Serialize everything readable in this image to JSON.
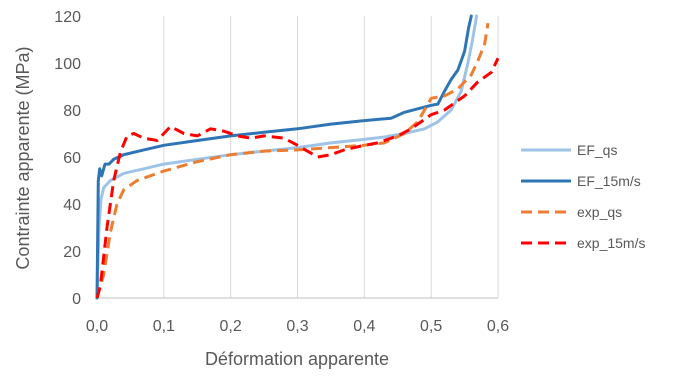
{
  "chart_data": {
    "type": "line",
    "title": "",
    "xlabel": "Déformation apparente",
    "ylabel": "Contrainte apparente (MPa)",
    "xlim": [
      0,
      0.6
    ],
    "ylim": [
      0,
      120
    ],
    "x_ticks": [
      "0,0",
      "0,1",
      "0,2",
      "0,3",
      "0,4",
      "0,5",
      "0,6"
    ],
    "y_ticks": [
      "0",
      "20",
      "40",
      "60",
      "80",
      "100",
      "120"
    ],
    "grid": "vertical",
    "legend_position": "right",
    "series": [
      {
        "name": "EF_qs",
        "color": "#9DC3E6",
        "style": "solid",
        "points": [
          [
            0,
            0
          ],
          [
            0.003,
            30
          ],
          [
            0.006,
            42
          ],
          [
            0.01,
            47
          ],
          [
            0.02,
            50
          ],
          [
            0.04,
            53
          ],
          [
            0.07,
            55
          ],
          [
            0.1,
            57
          ],
          [
            0.15,
            59
          ],
          [
            0.2,
            61
          ],
          [
            0.25,
            62.5
          ],
          [
            0.3,
            64
          ],
          [
            0.35,
            66
          ],
          [
            0.4,
            67.5
          ],
          [
            0.43,
            68.5
          ],
          [
            0.46,
            70
          ],
          [
            0.49,
            72
          ],
          [
            0.51,
            75
          ],
          [
            0.53,
            80
          ],
          [
            0.545,
            88
          ],
          [
            0.555,
            100
          ],
          [
            0.562,
            110
          ],
          [
            0.568,
            120
          ]
        ]
      },
      {
        "name": "EF_15m/s",
        "color": "#2E75B6",
        "style": "solid",
        "points": [
          [
            0,
            0
          ],
          [
            0.002,
            50
          ],
          [
            0.004,
            55
          ],
          [
            0.007,
            52
          ],
          [
            0.012,
            57
          ],
          [
            0.018,
            57
          ],
          [
            0.025,
            59
          ],
          [
            0.04,
            61
          ],
          [
            0.07,
            63
          ],
          [
            0.1,
            65
          ],
          [
            0.15,
            67
          ],
          [
            0.2,
            69
          ],
          [
            0.25,
            70.5
          ],
          [
            0.3,
            72
          ],
          [
            0.35,
            74
          ],
          [
            0.4,
            75.5
          ],
          [
            0.44,
            76.5
          ],
          [
            0.46,
            79
          ],
          [
            0.48,
            80.5
          ],
          [
            0.5,
            82
          ],
          [
            0.51,
            82.5
          ],
          [
            0.52,
            88
          ],
          [
            0.53,
            93
          ],
          [
            0.54,
            97
          ],
          [
            0.55,
            105
          ],
          [
            0.556,
            115
          ],
          [
            0.56,
            120
          ]
        ]
      },
      {
        "name": "exp_qs",
        "color": "#ED7D31",
        "style": "dashed",
        "points": [
          [
            0,
            0
          ],
          [
            0.01,
            10
          ],
          [
            0.02,
            28
          ],
          [
            0.03,
            40
          ],
          [
            0.04,
            46
          ],
          [
            0.06,
            50
          ],
          [
            0.1,
            54
          ],
          [
            0.15,
            58
          ],
          [
            0.2,
            61
          ],
          [
            0.25,
            62.5
          ],
          [
            0.3,
            63
          ],
          [
            0.35,
            64
          ],
          [
            0.4,
            65
          ],
          [
            0.43,
            66
          ],
          [
            0.46,
            70
          ],
          [
            0.48,
            75
          ],
          [
            0.5,
            85
          ],
          [
            0.52,
            86
          ],
          [
            0.54,
            89
          ],
          [
            0.56,
            95
          ],
          [
            0.57,
            101
          ],
          [
            0.58,
            108
          ],
          [
            0.585,
            117
          ]
        ]
      },
      {
        "name": "exp_15m/s",
        "color": "#FF0000",
        "style": "dashed",
        "points": [
          [
            0,
            0
          ],
          [
            0.005,
            5
          ],
          [
            0.015,
            30
          ],
          [
            0.025,
            50
          ],
          [
            0.035,
            62
          ],
          [
            0.045,
            69
          ],
          [
            0.055,
            70
          ],
          [
            0.07,
            68
          ],
          [
            0.09,
            67
          ],
          [
            0.11,
            73
          ],
          [
            0.13,
            70
          ],
          [
            0.15,
            69
          ],
          [
            0.17,
            72
          ],
          [
            0.19,
            71
          ],
          [
            0.21,
            69
          ],
          [
            0.23,
            68
          ],
          [
            0.25,
            69
          ],
          [
            0.28,
            68
          ],
          [
            0.3,
            65
          ],
          [
            0.33,
            60
          ],
          [
            0.35,
            61
          ],
          [
            0.37,
            63
          ],
          [
            0.4,
            65
          ],
          [
            0.42,
            66
          ],
          [
            0.45,
            69
          ],
          [
            0.47,
            72
          ],
          [
            0.5,
            78
          ],
          [
            0.52,
            80
          ],
          [
            0.55,
            86
          ],
          [
            0.57,
            92
          ],
          [
            0.59,
            96
          ],
          [
            0.6,
            102
          ]
        ]
      }
    ]
  }
}
